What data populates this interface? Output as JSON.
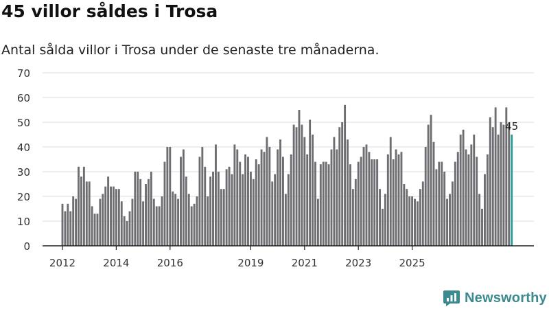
{
  "title": "45 villor såldes i Trosa",
  "subtitle": "Antal sålda villor i Trosa under de senaste tre månaderna.",
  "brand": {
    "name": "Newsworthy",
    "logo_icon": "newsworthy-logo-icon"
  },
  "colors": {
    "bar": "#6e6d72",
    "highlight": "#2a9d96",
    "grid": "#dcdcdc",
    "axis": "#222222",
    "brand": "#3a8a90"
  },
  "chart_data": {
    "type": "bar",
    "title": "45 villor såldes i Trosa",
    "xlabel": "",
    "ylabel": "",
    "ylim": [
      0,
      70
    ],
    "yticks": [
      0,
      10,
      20,
      30,
      40,
      50,
      60,
      70
    ],
    "xticks": [
      {
        "label": "2012",
        "at": 0
      },
      {
        "label": "2014",
        "at": 20
      },
      {
        "label": "2016",
        "at": 40
      },
      {
        "label": "2019",
        "at": 70
      },
      {
        "label": "2021",
        "at": 90
      },
      {
        "label": "2023",
        "at": 110
      },
      {
        "label": "2025",
        "at": 130
      }
    ],
    "values": [
      17,
      14,
      17,
      14,
      20,
      19,
      32,
      28,
      32,
      26,
      26,
      16,
      13,
      13,
      19,
      21,
      24,
      28,
      24,
      24,
      23,
      23,
      18,
      12,
      10,
      14,
      19,
      30,
      30,
      27,
      18,
      25,
      27,
      30,
      19,
      16,
      16,
      20,
      34,
      40,
      40,
      22,
      21,
      19,
      36,
      39,
      28,
      21,
      16,
      17,
      20,
      36,
      40,
      32,
      20,
      28,
      30,
      41,
      30,
      23,
      23,
      31,
      32,
      29,
      41,
      39,
      34,
      29,
      37,
      36,
      30,
      27,
      35,
      33,
      39,
      38,
      44,
      40,
      26,
      29,
      39,
      43,
      36,
      21,
      29,
      37,
      49,
      48,
      55,
      49,
      44,
      37,
      51,
      45,
      34,
      19,
      33,
      34,
      34,
      33,
      39,
      44,
      39,
      48,
      50,
      57,
      43,
      33,
      23,
      27,
      34,
      36,
      40,
      41,
      38,
      35,
      35,
      35,
      23,
      15,
      21,
      37,
      44,
      35,
      39,
      37,
      38,
      25,
      23,
      20,
      20,
      19,
      18,
      23,
      26,
      40,
      49,
      53,
      42,
      31,
      34,
      34,
      30,
      19,
      21,
      26,
      34,
      38,
      45,
      47,
      39,
      37,
      41,
      45,
      36,
      21,
      15,
      29,
      37,
      52,
      48,
      56,
      45,
      50,
      49,
      56,
      49,
      45
    ],
    "highlight_last": true,
    "last_label": "45"
  }
}
